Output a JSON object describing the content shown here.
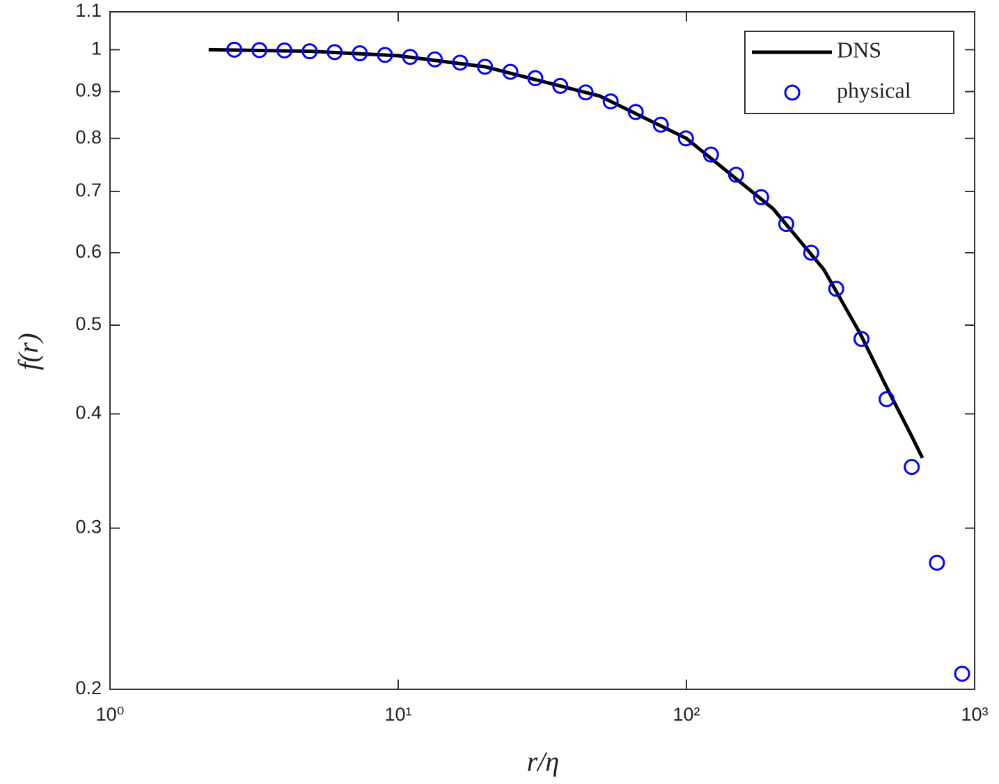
{
  "chart_data": {
    "type": "line",
    "xlabel": "r/η",
    "ylabel": "f(r)",
    "xscale": "log",
    "yscale": "log",
    "xlim": [
      1,
      1000
    ],
    "ylim": [
      0.2,
      1.1
    ],
    "xticks": [
      {
        "value": 1,
        "label": "10⁰"
      },
      {
        "value": 10,
        "label": "10¹"
      },
      {
        "value": 100,
        "label": "10²"
      },
      {
        "value": 1000,
        "label": "10³"
      }
    ],
    "yticks": [
      0.2,
      0.3,
      0.4,
      0.5,
      0.6,
      0.7,
      0.8,
      0.9,
      1,
      1.1
    ],
    "legend": "upper right",
    "series": [
      {
        "name": "DNS",
        "style": "line",
        "color": "#000000",
        "x": [
          2.2,
          5,
          10,
          20,
          50,
          100,
          200,
          300,
          400,
          500,
          600,
          659
        ],
        "values": [
          1.0,
          0.996,
          0.985,
          0.958,
          0.89,
          0.8,
          0.67,
          0.575,
          0.49,
          0.425,
          0.38,
          0.358
        ]
      },
      {
        "name": "physical",
        "style": "markers",
        "color": "#0000ff",
        "x": [
          2.7,
          3.3,
          4.03,
          4.93,
          6.02,
          7.36,
          9.0,
          11.0,
          13.4,
          16.4,
          20.0,
          24.5,
          29.9,
          36.5,
          44.7,
          54.6,
          66.7,
          81.5,
          99.6,
          121.7,
          148.7,
          181.7,
          222,
          271,
          331,
          405,
          495,
          605,
          740,
          905
        ],
        "values": [
          1.0,
          0.999,
          0.998,
          0.996,
          0.994,
          0.991,
          0.987,
          0.982,
          0.976,
          0.968,
          0.958,
          0.946,
          0.931,
          0.913,
          0.898,
          0.878,
          0.855,
          0.828,
          0.8,
          0.768,
          0.73,
          0.69,
          0.645,
          0.6,
          0.548,
          0.483,
          0.415,
          0.35,
          0.275,
          0.208
        ]
      }
    ]
  }
}
